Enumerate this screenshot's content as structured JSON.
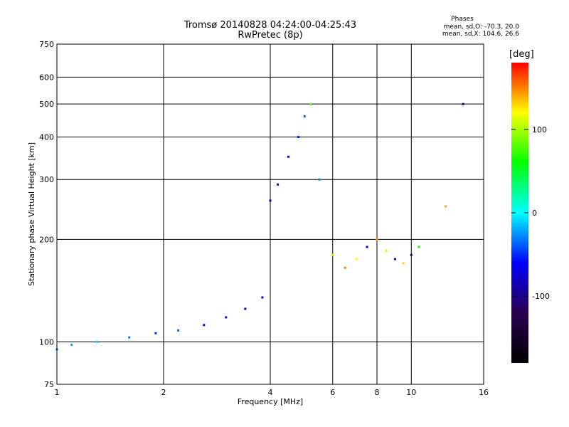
{
  "title": {
    "line1": "Tromsø 20140828 04:24:00-04:25:43",
    "line2": "RwPretec (8p)"
  },
  "phase_stats": {
    "heading": "Phases",
    "line_o": "mean, sd,O: -70.3, 20.0",
    "line_x": "mean, sd,X: 104.6, 26.6"
  },
  "colorbar": {
    "unit": "deg",
    "ticks": [
      "100",
      "0",
      "-100"
    ],
    "range": [
      -180,
      180
    ],
    "colormap": [
      "#000000",
      "#2a0050",
      "#0000ff",
      "#00ffff",
      "#00ff00",
      "#ffff00",
      "#ff0000"
    ]
  },
  "chart_data": {
    "type": "scatter",
    "xlabel": "Frequency [MHz]",
    "ylabel": "Stationary phase Virtual Height [km]",
    "xscale": "log",
    "yscale": "log",
    "xlim": [
      1,
      16
    ],
    "ylim": [
      75,
      750
    ],
    "x_ticks": [
      1,
      2,
      4,
      6,
      8,
      10,
      16
    ],
    "y_ticks": [
      75,
      100,
      200,
      300,
      400,
      500,
      600,
      750
    ],
    "grid": true,
    "point_color_encodes": "phase [deg]",
    "sample_points": [
      {
        "x": 1.0,
        "y": 95,
        "phase": -30
      },
      {
        "x": 1.1,
        "y": 98,
        "phase": -20
      },
      {
        "x": 1.3,
        "y": 100,
        "phase": -10
      },
      {
        "x": 1.6,
        "y": 103,
        "phase": -30
      },
      {
        "x": 1.9,
        "y": 106,
        "phase": -50
      },
      {
        "x": 2.2,
        "y": 108,
        "phase": -40
      },
      {
        "x": 2.6,
        "y": 112,
        "phase": -60
      },
      {
        "x": 3.0,
        "y": 118,
        "phase": -80
      },
      {
        "x": 3.4,
        "y": 125,
        "phase": -90
      },
      {
        "x": 3.8,
        "y": 135,
        "phase": -75
      },
      {
        "x": 4.0,
        "y": 260,
        "phase": -70
      },
      {
        "x": 4.2,
        "y": 290,
        "phase": -60
      },
      {
        "x": 4.5,
        "y": 350,
        "phase": -80
      },
      {
        "x": 4.8,
        "y": 400,
        "phase": -50
      },
      {
        "x": 5.0,
        "y": 460,
        "phase": -40
      },
      {
        "x": 5.2,
        "y": 500,
        "phase": 80
      },
      {
        "x": 5.5,
        "y": 300,
        "phase": -30
      },
      {
        "x": 6.0,
        "y": 180,
        "phase": 100
      },
      {
        "x": 6.5,
        "y": 165,
        "phase": 150
      },
      {
        "x": 7.0,
        "y": 175,
        "phase": 120
      },
      {
        "x": 7.5,
        "y": 190,
        "phase": -60
      },
      {
        "x": 8.0,
        "y": 200,
        "phase": 140
      },
      {
        "x": 8.5,
        "y": 185,
        "phase": 110
      },
      {
        "x": 9.0,
        "y": 175,
        "phase": -90
      },
      {
        "x": 9.5,
        "y": 170,
        "phase": 130
      },
      {
        "x": 10.0,
        "y": 180,
        "phase": -100
      },
      {
        "x": 10.5,
        "y": 190,
        "phase": 60
      },
      {
        "x": 12.5,
        "y": 250,
        "phase": 140
      },
      {
        "x": 14.0,
        "y": 500,
        "phase": -120
      }
    ]
  }
}
